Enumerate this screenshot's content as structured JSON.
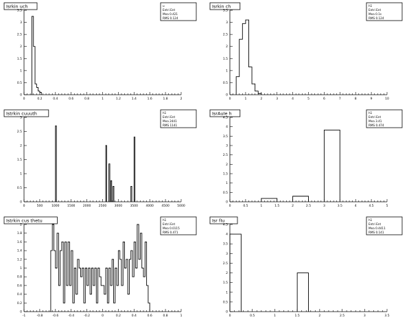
{
  "chart_data": [
    {
      "type": "bar",
      "title": "Isrkin uch",
      "stats": [
        "u",
        "Entri  Ent",
        "Mea  0.421",
        "RMS  0.124"
      ],
      "xlim": [
        0,
        2
      ],
      "ylim": [
        0,
        3.5
      ],
      "xticks": [
        "0",
        "0.2",
        "0.4",
        "0.6",
        "0.8",
        "1",
        "1.2",
        "1.4",
        "1.6",
        "1.8",
        "2"
      ],
      "yticks": [
        "0",
        "0.5",
        "1",
        "1.5",
        "2",
        "2.5",
        "3",
        "3.5"
      ],
      "bars": [
        {
          "x0": 0.1,
          "x1": 0.12,
          "y": 3.25
        },
        {
          "x0": 0.12,
          "x1": 0.14,
          "y": 2.0
        },
        {
          "x0": 0.14,
          "x1": 0.16,
          "y": 0.45
        },
        {
          "x0": 0.16,
          "x1": 0.18,
          "y": 0.3
        },
        {
          "x0": 0.18,
          "x1": 0.2,
          "y": 0.15
        },
        {
          "x0": 0.2,
          "x1": 0.22,
          "y": 0.1
        }
      ]
    },
    {
      "type": "bar",
      "title": "Isrkin ch",
      "stats": [
        "h1",
        "Entri  Ent",
        "Mea  0.1s",
        "RMS  0.124"
      ],
      "xlim": [
        0,
        10
      ],
      "ylim": [
        0,
        3.5
      ],
      "xticks": [
        "0",
        "1",
        "2",
        "3",
        "4",
        "5",
        "6",
        "7",
        "8",
        "9",
        "10"
      ],
      "yticks": [
        "0",
        "0.5",
        "1",
        "1.5",
        "2",
        "2.5",
        "3",
        "3.5"
      ],
      "bars": [
        {
          "x0": 0.4,
          "x1": 0.6,
          "y": 0.75
        },
        {
          "x0": 0.6,
          "x1": 0.8,
          "y": 2.3
        },
        {
          "x0": 0.8,
          "x1": 1.0,
          "y": 2.95
        },
        {
          "x0": 1.0,
          "x1": 1.2,
          "y": 3.1
        },
        {
          "x0": 1.2,
          "x1": 1.4,
          "y": 1.15
        },
        {
          "x0": 1.4,
          "x1": 1.6,
          "y": 0.45
        },
        {
          "x0": 1.6,
          "x1": 1.8,
          "y": 0.15
        },
        {
          "x0": 1.8,
          "x1": 2.0,
          "y": 0.05
        }
      ]
    },
    {
      "type": "bar",
      "title": "Istrkin cuuuth",
      "stats": [
        "h1",
        "Entri  Ent",
        "Mea  2441",
        "RMS  1141"
      ],
      "xlim": [
        0,
        5000
      ],
      "ylim": [
        0,
        3
      ],
      "xticks": [
        "0",
        "500",
        "1000",
        "1500",
        "2000",
        "2500",
        "3000",
        "3500",
        "4000",
        "4500",
        "5000"
      ],
      "yticks": [
        "0",
        "0.5",
        "1",
        "1.5",
        "2",
        "2.5",
        "3"
      ],
      "bars": [
        {
          "x0": 1000,
          "x1": 1030,
          "y": 2.7
        },
        {
          "x0": 2600,
          "x1": 2630,
          "y": 2.0
        },
        {
          "x0": 2700,
          "x1": 2730,
          "y": 1.35
        },
        {
          "x0": 2760,
          "x1": 2790,
          "y": 0.75
        },
        {
          "x0": 2830,
          "x1": 2860,
          "y": 0.55
        },
        {
          "x0": 3400,
          "x1": 3430,
          "y": 0.55
        },
        {
          "x0": 3500,
          "x1": 3530,
          "y": 2.3
        }
      ]
    },
    {
      "type": "bar",
      "title": "IsrAuIe h",
      "stats": [
        "h1",
        "Entri  Ent",
        "Mea  3.41",
        "RMS  0.474"
      ],
      "xlim": [
        0,
        5
      ],
      "ylim": [
        0,
        5
      ],
      "xticks": [
        "0",
        "0.5",
        "1",
        "1.5",
        "2",
        "2.5",
        "3",
        "3.5",
        "4",
        "4.5",
        "5"
      ],
      "yticks": [
        "0",
        "0.5",
        "1",
        "1.5",
        "2",
        "2.5",
        "3",
        "3.5",
        "4",
        "4.5"
      ],
      "bars": [
        {
          "x0": 1.0,
          "x1": 1.5,
          "y": 0.2
        },
        {
          "x0": 2.0,
          "x1": 2.5,
          "y": 0.33
        },
        {
          "x0": 3.0,
          "x1": 3.5,
          "y": 4.25
        }
      ]
    },
    {
      "type": "bar",
      "title": "Istrkin cus thetu",
      "stats": [
        "h1",
        "Entri  Ent",
        "Mea  0.0115",
        "RMS  0.471"
      ],
      "xlim": [
        -1,
        1
      ],
      "ylim": [
        0,
        2
      ],
      "xticks": [
        "-1",
        "-0.8",
        "-0.6",
        "-0.4",
        "-0.2",
        "0",
        "0.2",
        "0.4",
        "0.6",
        "0.8",
        "1"
      ],
      "yticks": [
        "0",
        "0.2",
        "0.4",
        "0.6",
        "0.8",
        "1",
        "1.2",
        "1.4",
        "1.6",
        "1.8",
        "2"
      ],
      "bars": [
        {
          "x0": -0.66,
          "x1": -0.64,
          "y": 1.4
        },
        {
          "x0": -0.64,
          "x1": -0.62,
          "y": 2.0
        },
        {
          "x0": -0.62,
          "x1": -0.6,
          "y": 1.4
        },
        {
          "x0": -0.6,
          "x1": -0.58,
          "y": 1.0
        },
        {
          "x0": -0.58,
          "x1": -0.56,
          "y": 1.8
        },
        {
          "x0": -0.56,
          "x1": -0.54,
          "y": 0.6
        },
        {
          "x0": -0.54,
          "x1": -0.52,
          "y": 1.4
        },
        {
          "x0": -0.52,
          "x1": -0.5,
          "y": 1.6
        },
        {
          "x0": -0.5,
          "x1": -0.48,
          "y": 0.2
        },
        {
          "x0": -0.48,
          "x1": -0.46,
          "y": 1.6
        },
        {
          "x0": -0.46,
          "x1": -0.44,
          "y": 0.6
        },
        {
          "x0": -0.44,
          "x1": -0.42,
          "y": 1.6
        },
        {
          "x0": -0.42,
          "x1": -0.4,
          "y": 0.6
        },
        {
          "x0": -0.4,
          "x1": -0.38,
          "y": 1.4
        },
        {
          "x0": -0.38,
          "x1": -0.36,
          "y": 0.2
        },
        {
          "x0": -0.36,
          "x1": -0.34,
          "y": 1.0
        },
        {
          "x0": -0.34,
          "x1": -0.32,
          "y": 0.4
        },
        {
          "x0": -0.32,
          "x1": -0.3,
          "y": 1.2
        },
        {
          "x0": -0.3,
          "x1": -0.28,
          "y": 1.0
        },
        {
          "x0": -0.28,
          "x1": -0.26,
          "y": 0.8
        },
        {
          "x0": -0.26,
          "x1": -0.24,
          "y": 1.0
        },
        {
          "x0": -0.24,
          "x1": -0.22,
          "y": 0.2
        },
        {
          "x0": -0.22,
          "x1": -0.2,
          "y": 1.0
        },
        {
          "x0": -0.2,
          "x1": -0.18,
          "y": 0.6
        },
        {
          "x0": -0.18,
          "x1": -0.16,
          "y": 1.0
        },
        {
          "x0": -0.16,
          "x1": -0.14,
          "y": 0.4
        },
        {
          "x0": -0.14,
          "x1": -0.12,
          "y": 1.0
        },
        {
          "x0": -0.12,
          "x1": -0.1,
          "y": 0.6
        },
        {
          "x0": -0.1,
          "x1": -0.08,
          "y": 1.0
        },
        {
          "x0": -0.08,
          "x1": -0.06,
          "y": 0.2
        },
        {
          "x0": -0.06,
          "x1": -0.04,
          "y": 1.0
        },
        {
          "x0": -0.04,
          "x1": -0.02,
          "y": 0.8
        },
        {
          "x0": -0.02,
          "x1": 0.0,
          "y": 0.6
        },
        {
          "x0": 0.0,
          "x1": 0.02,
          "y": 0.6
        },
        {
          "x0": 0.02,
          "x1": 0.04,
          "y": 0.4
        },
        {
          "x0": 0.04,
          "x1": 0.06,
          "y": 1.0
        },
        {
          "x0": 0.06,
          "x1": 0.08,
          "y": 0.2
        },
        {
          "x0": 0.08,
          "x1": 0.1,
          "y": 1.0
        },
        {
          "x0": 0.1,
          "x1": 0.12,
          "y": 0.6
        },
        {
          "x0": 0.12,
          "x1": 0.14,
          "y": 1.2
        },
        {
          "x0": 0.14,
          "x1": 0.16,
          "y": 0.2
        },
        {
          "x0": 0.16,
          "x1": 0.18,
          "y": 1.0
        },
        {
          "x0": 0.18,
          "x1": 0.2,
          "y": 0.6
        },
        {
          "x0": 0.2,
          "x1": 0.22,
          "y": 1.4
        },
        {
          "x0": 0.22,
          "x1": 0.24,
          "y": 1.2
        },
        {
          "x0": 0.24,
          "x1": 0.26,
          "y": 0.6
        },
        {
          "x0": 0.26,
          "x1": 0.28,
          "y": 1.6
        },
        {
          "x0": 0.28,
          "x1": 0.3,
          "y": 1.0
        },
        {
          "x0": 0.3,
          "x1": 0.32,
          "y": 1.2
        },
        {
          "x0": 0.32,
          "x1": 0.34,
          "y": 0.4
        },
        {
          "x0": 0.34,
          "x1": 0.36,
          "y": 1.2
        },
        {
          "x0": 0.36,
          "x1": 0.38,
          "y": 1.4
        },
        {
          "x0": 0.38,
          "x1": 0.4,
          "y": 0.8
        },
        {
          "x0": 0.4,
          "x1": 0.42,
          "y": 1.6
        },
        {
          "x0": 0.42,
          "x1": 0.44,
          "y": 1.0
        },
        {
          "x0": 0.44,
          "x1": 0.46,
          "y": 2.0
        },
        {
          "x0": 0.46,
          "x1": 0.48,
          "y": 1.2
        },
        {
          "x0": 0.48,
          "x1": 0.5,
          "y": 1.8
        },
        {
          "x0": 0.5,
          "x1": 0.52,
          "y": 1.0
        },
        {
          "x0": 0.52,
          "x1": 0.54,
          "y": 0.8
        },
        {
          "x0": 0.54,
          "x1": 0.56,
          "y": 1.6
        },
        {
          "x0": 0.56,
          "x1": 0.58,
          "y": 0.6
        },
        {
          "x0": 0.58,
          "x1": 0.6,
          "y": 0.2
        }
      ]
    },
    {
      "type": "bar",
      "title": "Isr fIu",
      "stats": [
        "h1",
        "Entri  Ent",
        "Mea  0.4411",
        "RMS  0.141"
      ],
      "xlim": [
        0,
        3.5
      ],
      "ylim": [
        0,
        4.5
      ],
      "xticks": [
        "0",
        "0.5",
        "1",
        "1.5",
        "2",
        "2.5",
        "3",
        "3.5"
      ],
      "yticks": [
        "0",
        "0.5",
        "1",
        "1.5",
        "2",
        "2.5",
        "3",
        "3.5",
        "4",
        "4.5"
      ],
      "bars": [
        {
          "x0": 0.0,
          "x1": 0.25,
          "y": 4.0
        },
        {
          "x0": 1.5,
          "x1": 1.75,
          "y": 2.0
        }
      ]
    }
  ]
}
